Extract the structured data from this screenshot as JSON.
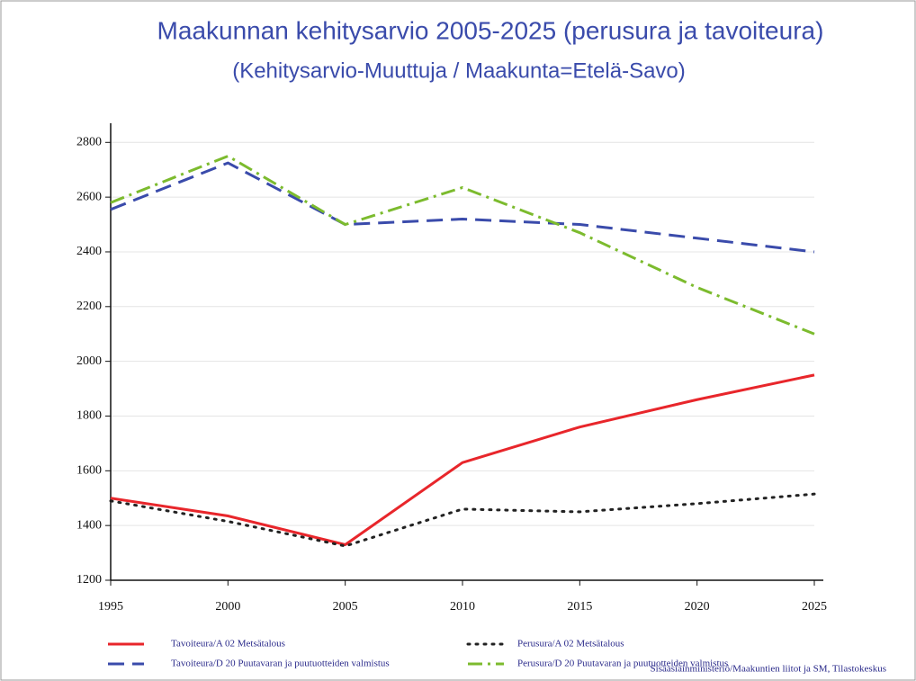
{
  "chart_data": {
    "type": "line",
    "title": "Maakunnan kehitysarvio 2005-2025 (perusura ja tavoiteura)",
    "subtitle": "(Kehitysarvio-Muuttuja / Maakunta=Etelä-Savo)",
    "x": [
      1995,
      2000,
      2005,
      2010,
      2015,
      2020,
      2025
    ],
    "xlim": [
      1995,
      2025
    ],
    "xticks": [
      1995,
      2000,
      2005,
      2010,
      2015,
      2020,
      2025
    ],
    "ylim": [
      1200,
      2870
    ],
    "yticks": [
      1200,
      1400,
      1600,
      1800,
      2000,
      2200,
      2400,
      2600,
      2800
    ],
    "grid": true,
    "legend": "bottom",
    "source": "Sisäasiainministeriö/Maakuntien liitot ja SM, Tilastokeskus",
    "series": [
      {
        "name": "Tavoiteura/A 02 Metsätalous",
        "color": "#e8262b",
        "style": "solid",
        "values": [
          1500,
          1435,
          1330,
          1630,
          1760,
          1860,
          1950
        ]
      },
      {
        "name": "Perusura/A 02 Metsätalous",
        "color": "#222222",
        "style": "dotted",
        "values": [
          1490,
          1415,
          1325,
          1460,
          1450,
          1480,
          1515
        ]
      },
      {
        "name": "Tavoiteura/D 20 Puutavaran ja puutuotteiden valmistus",
        "color": "#3a4bab",
        "style": "dashed",
        "values": [
          2555,
          2725,
          2500,
          2520,
          2500,
          2450,
          2400
        ]
      },
      {
        "name": "Perusura/D 20 Puutavaran ja puutuotteiden valmistus",
        "color": "#7cbb2e",
        "style": "dashdot",
        "values": [
          2580,
          2750,
          2500,
          2635,
          2470,
          2270,
          2100
        ]
      }
    ]
  }
}
